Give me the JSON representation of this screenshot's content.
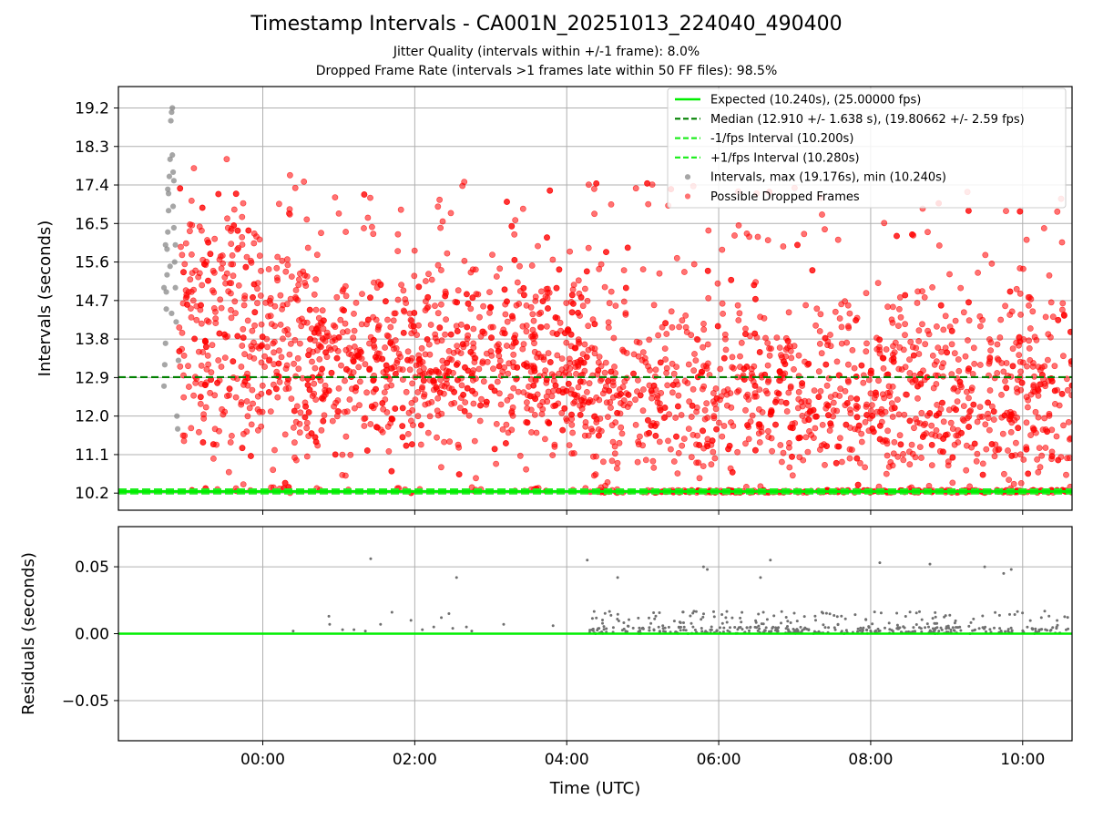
{
  "title": "Timestamp Intervals - CA001N_20251013_224040_490400",
  "subtitle_1": "Jitter Quality (intervals within +/-1 frame): 8.0%",
  "subtitle_2": "Dropped Frame Rate (intervals >1 frames late within 50 FF files): 98.5%",
  "colors": {
    "expected": "#00ee00",
    "median": "#008000",
    "fps_interval": "#22ee22",
    "intervals": "#808080",
    "dropped": "#ff0000",
    "residuals": "#707070",
    "grid": "#b0b0b0"
  },
  "chart_data": [
    {
      "type": "scatter",
      "name": "top",
      "ylabel": "Intervals (seconds)",
      "xlabel": "",
      "yticks": [
        "10.2",
        "11.1",
        "12.0",
        "12.9",
        "13.8",
        "14.7",
        "15.6",
        "16.5",
        "17.4",
        "18.3",
        "19.2"
      ],
      "ylim": [
        9.8,
        19.7
      ],
      "xlim_hours": [
        -1.9,
        10.65
      ],
      "xticks": [
        "00:00",
        "02:00",
        "04:00",
        "06:00",
        "08:00",
        "10:00"
      ],
      "grid": true,
      "legend_placement": "top-right",
      "legend": [
        {
          "label": "Expected (10.240s), (25.00000 fps)",
          "style": "solid",
          "color": "#00ee00"
        },
        {
          "label": "Median (12.910 +/- 1.638 s), (19.80662 +/- 2.59 fps)",
          "style": "dashed",
          "color": "#008000"
        },
        {
          "label": "-1/fps Interval (10.200s)",
          "style": "dashed",
          "color": "#22ee22"
        },
        {
          "label": "+1/fps Interval (10.280s)",
          "style": "dashed",
          "color": "#22ee22"
        },
        {
          "label": "Intervals, max (19.176s), min (10.240s)",
          "style": "dot",
          "color": "#808080"
        },
        {
          "label": "Possible Dropped Frames",
          "style": "dot",
          "color": "#ff0000"
        }
      ],
      "lines": {
        "expected": 10.24,
        "median": 12.91,
        "minus_fps": 10.2,
        "plus_fps": 10.28
      },
      "series": [
        {
          "name": "Intervals, max (19.176s), min (10.240s)",
          "points": [
            [
              -1.3,
              12.7
            ],
            [
              -1.29,
              13.2
            ],
            [
              -1.28,
              13.7
            ],
            [
              -1.27,
              14.5
            ],
            [
              -1.27,
              14.9
            ],
            [
              -1.26,
              15.3
            ],
            [
              -1.26,
              15.9
            ],
            [
              -1.25,
              16.3
            ],
            [
              -1.24,
              16.8
            ],
            [
              -1.24,
              17.2
            ],
            [
              -1.23,
              17.6
            ],
            [
              -1.22,
              18.0
            ],
            [
              -1.21,
              18.9
            ],
            [
              -1.2,
              19.1
            ],
            [
              -1.19,
              19.2
            ],
            [
              -1.19,
              18.1
            ],
            [
              -1.18,
              17.7
            ],
            [
              -1.18,
              16.9
            ],
            [
              -1.17,
              16.4
            ],
            [
              -1.16,
              15.6
            ],
            [
              -1.15,
              15.0
            ],
            [
              -1.14,
              14.2
            ],
            [
              -1.13,
              12.0
            ],
            [
              -1.12,
              11.7
            ],
            [
              -1.11,
              13.3
            ],
            [
              -1.3,
              15.0
            ],
            [
              -1.28,
              16.0
            ],
            [
              -1.25,
              17.3
            ],
            [
              -1.22,
              15.5
            ],
            [
              -1.2,
              14.4
            ],
            [
              -1.17,
              17.5
            ],
            [
              -1.15,
              16.0
            ]
          ]
        },
        {
          "name": "Possible Dropped Frames",
          "summary": "About 2,900 points from about -1.1 h to 10.65 h; values 10.2 to 18.9 s, densest 11.0 to 14.5 s; many points at about 10.24 s after 04:30.",
          "points": []
        }
      ]
    },
    {
      "type": "scatter",
      "name": "residuals",
      "ylabel": "Residuals (seconds)",
      "xlabel": "Time (UTC)",
      "yticks": [
        "−0.05",
        "0.00",
        "0.05"
      ],
      "ylim": [
        -0.08,
        0.08
      ],
      "xlim_hours": [
        -1.9,
        10.65
      ],
      "xticks": [
        "00:00",
        "02:00",
        "04:00",
        "06:00",
        "08:00",
        "10:00"
      ],
      "grid": true,
      "zero_line": 0.0,
      "series": [
        {
          "name": "residuals",
          "points": [
            [
              1.42,
              0.056
            ],
            [
              2.55,
              0.042
            ],
            [
              4.27,
              0.055
            ],
            [
              4.67,
              0.042
            ],
            [
              5.8,
              0.05
            ],
            [
              5.85,
              0.048
            ],
            [
              6.55,
              0.042
            ],
            [
              6.68,
              0.055
            ],
            [
              8.12,
              0.053
            ],
            [
              8.78,
              0.052
            ],
            [
              9.5,
              0.05
            ],
            [
              9.75,
              0.045
            ],
            [
              9.85,
              0.048
            ],
            [
              0.4,
              0.002
            ],
            [
              0.87,
              0.013
            ],
            [
              0.88,
              0.007
            ],
            [
              1.05,
              0.003
            ],
            [
              1.2,
              0.003
            ],
            [
              1.35,
              0.002
            ],
            [
              1.55,
              0.007
            ],
            [
              1.7,
              0.016
            ],
            [
              1.95,
              0.01
            ],
            [
              2.1,
              0.003
            ],
            [
              2.25,
              0.005
            ],
            [
              2.35,
              0.012
            ],
            [
              2.45,
              0.015
            ],
            [
              2.5,
              0.004
            ],
            [
              2.68,
              0.005
            ],
            [
              2.75,
              0.002
            ],
            [
              3.17,
              0.007
            ],
            [
              3.82,
              0.006
            ]
          ]
        }
      ]
    }
  ]
}
